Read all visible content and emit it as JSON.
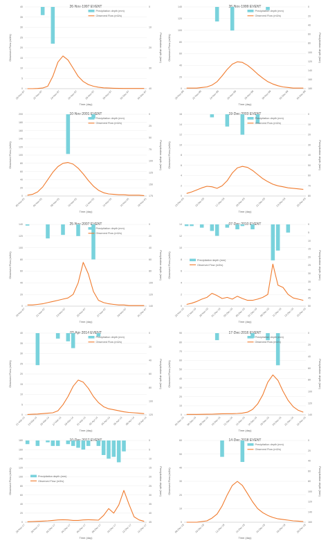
{
  "colors": {
    "precip": "#79d2dc",
    "flow": "#f07a2c",
    "axis": "#bdbdbd",
    "grid": "#ededed"
  },
  "chart_data": [
    {
      "type": "bar+line",
      "title": "26-Nov-1997 EVENT",
      "xlabel": "Time (day)",
      "ylabel_left": "Observed Flow (m3/s)",
      "ylabel_right": "Precipitation depth (mm)",
      "legend_position": "top-right",
      "series": [
        {
          "name": "Precipitation depth (mm)",
          "kind": "bar",
          "axis": "right",
          "values": [
            0,
            0,
            0,
            4,
            0,
            18,
            0,
            0,
            0,
            0,
            0,
            0,
            0,
            0,
            0,
            0,
            0,
            0,
            0,
            0,
            0,
            0,
            0,
            0
          ]
        },
        {
          "name": "Observed Flow (m3/s)",
          "kind": "line",
          "axis": "left",
          "values": [
            0,
            0,
            0.1,
            0.3,
            1.2,
            6,
            13,
            16,
            14,
            10,
            6,
            3.5,
            2,
            1.2,
            0.7,
            0.4,
            0.3,
            0.2,
            0.15,
            0.1,
            0.1,
            0.1,
            0.1,
            0.1
          ]
        }
      ],
      "ylim_left": [
        0,
        40
      ],
      "ylim_right_reversed": [
        0,
        40
      ],
      "left_ticks": [
        "40",
        "35",
        "30",
        "25",
        "20",
        "15",
        "10",
        "5",
        "0"
      ],
      "right_ticks": [
        "0",
        "10",
        "20",
        "30",
        "40"
      ],
      "x_tick_labels": [
        "20-Nov-97",
        "22-Nov-97",
        "24-Nov-97",
        "26-Nov-97",
        "28-Nov-97",
        "30-Nov-97",
        "02-Dec-97",
        "04-Dec-97"
      ]
    },
    {
      "type": "bar+line",
      "title": "26-Nov-1999 EVENT",
      "xlabel": "Time (day)",
      "ylabel_left": "Observed Flow (m3/s)",
      "ylabel_right": "Precipitation depth (mm)",
      "legend_position": "top-right",
      "series": [
        {
          "name": "Precipitation depth (mm)",
          "kind": "bar",
          "axis": "right",
          "values": [
            0,
            0,
            0,
            0,
            0,
            0,
            32,
            0,
            0,
            52,
            0,
            0,
            0,
            0,
            0,
            0,
            7,
            0,
            0,
            0,
            0,
            0,
            0,
            0
          ]
        },
        {
          "name": "Observed Flow (m3/s)",
          "kind": "line",
          "axis": "left",
          "values": [
            1,
            1,
            1,
            2,
            3,
            6,
            12,
            22,
            33,
            42,
            46,
            45,
            40,
            33,
            25,
            18,
            12,
            8,
            5,
            3,
            2,
            1,
            1,
            1
          ]
        }
      ],
      "ylim_left": [
        0,
        140
      ],
      "ylim_right_reversed": [
        0,
        180
      ],
      "left_ticks": [
        "140",
        "120",
        "100",
        "80",
        "60",
        "40",
        "20",
        "0"
      ],
      "right_ticks": [
        "0",
        "20",
        "40",
        "60",
        "80",
        "100",
        "120",
        "140",
        "160",
        "180"
      ],
      "x_tick_labels": [
        "20-Nov-99",
        "22-Nov-99",
        "24-Nov-99",
        "26-Nov-99",
        "28-Nov-99",
        "30-Nov-99",
        "02-Dec-99",
        "04-Dec-99"
      ]
    },
    {
      "type": "bar+line",
      "title": "10-Nov-2001 EVENT",
      "xlabel": "Time (day)",
      "ylabel_left": "Observed Flow (m3/s)",
      "ylabel_right": "Precipitation depth (mm)",
      "legend_position": "top-right",
      "series": [
        {
          "name": "Precipitation depth (mm)",
          "kind": "bar",
          "axis": "right",
          "values": [
            0,
            0,
            0,
            0,
            0,
            0,
            0,
            0,
            85,
            0,
            0,
            0,
            0,
            9,
            0,
            0,
            0,
            0,
            0,
            0,
            0,
            0,
            0,
            0
          ]
        },
        {
          "name": "Observed Flow (m3/s)",
          "kind": "line",
          "axis": "left",
          "values": [
            2,
            4,
            10,
            22,
            40,
            58,
            72,
            80,
            82,
            78,
            68,
            54,
            38,
            24,
            14,
            8,
            5,
            4,
            3,
            3,
            2,
            2,
            2,
            1
          ]
        }
      ],
      "ylim_left": [
        0,
        200
      ],
      "ylim_right_reversed": [
        0,
        175
      ],
      "left_ticks": [
        "200",
        "180",
        "160",
        "140",
        "120",
        "100",
        "80",
        "60",
        "40",
        "20",
        "0"
      ],
      "right_ticks": [
        "0",
        "25",
        "50",
        "75",
        "100",
        "125",
        "150",
        "175"
      ],
      "x_tick_labels": [
        "05-Nov-01",
        "06-Nov-01",
        "08-Nov-01",
        "10-Nov-01",
        "12-Nov-01",
        "14-Nov-01",
        "16-Nov-01",
        "18-Nov-01"
      ]
    },
    {
      "type": "bar+line",
      "title": "19-Dec-2003 EVENT",
      "xlabel": "Time (day)",
      "ylabel_left": "Observed Flow (m3/s)",
      "ylabel_right": "Precipitation depth (mm)",
      "legend_position": "top-right",
      "series": [
        {
          "name": "Precipitation depth (mm)",
          "kind": "bar",
          "axis": "right",
          "values": [
            0,
            0,
            0,
            0,
            0,
            3,
            0,
            0,
            12,
            0,
            0,
            20,
            0,
            0,
            9,
            0,
            0,
            0,
            0,
            0,
            0,
            0,
            0,
            0
          ]
        },
        {
          "name": "Observed Flow (m3/s)",
          "kind": "line",
          "axis": "left",
          "values": [
            0.5,
            0.8,
            1.2,
            1.6,
            1.9,
            1.8,
            1.5,
            2,
            3,
            4.5,
            5.5,
            5.8,
            5.6,
            5,
            4.2,
            3.4,
            2.8,
            2.3,
            2,
            1.8,
            1.6,
            1.5,
            1.4,
            1.3
          ]
        }
      ],
      "ylim_left": [
        0,
        16
      ],
      "ylim_right_reversed": [
        0,
        80
      ],
      "left_ticks": [
        "16",
        "14",
        "12",
        "10",
        "8",
        "6",
        "4",
        "2",
        "0"
      ],
      "right_ticks": [
        "0",
        "10",
        "20",
        "30",
        "40",
        "50",
        "60",
        "70",
        "80"
      ],
      "x_tick_labels": [
        "13-Dec-03",
        "15-Dec-03",
        "17-Dec-03",
        "19-Dec-03",
        "21-Dec-03",
        "23-Dec-03",
        "25-Dec-03"
      ]
    },
    {
      "type": "bar+line",
      "title": "25-Nov-2007 EVENT",
      "xlabel": "Time (day)",
      "ylabel_left": "Observed Flow (m3/s)",
      "ylabel_right": "Precipitation depth (mm)",
      "legend_position": "top-right",
      "series": [
        {
          "name": "Precipitation depth (mm)",
          "kind": "bar",
          "axis": "right",
          "values": [
            2,
            0,
            0,
            0,
            24,
            0,
            0,
            18,
            0,
            0,
            20,
            0,
            0,
            60,
            0,
            0,
            0,
            0,
            0,
            0,
            0,
            0,
            0,
            0
          ]
        },
        {
          "name": "Observed Flow (m3/s)",
          "kind": "line",
          "axis": "left",
          "values": [
            2,
            2,
            3,
            4,
            6,
            8,
            10,
            12,
            14,
            20,
            40,
            75,
            55,
            25,
            10,
            6,
            4,
            3,
            2,
            2,
            1,
            1,
            1,
            1
          ]
        }
      ],
      "ylim_left": [
        0,
        140
      ],
      "ylim_right_reversed": [
        0,
        140
      ],
      "left_ticks": [
        "140",
        "120",
        "100",
        "80",
        "60",
        "40",
        "20",
        "0"
      ],
      "right_ticks": [
        "0",
        "20",
        "40",
        "60",
        "80",
        "100",
        "120",
        "140"
      ],
      "x_tick_labels": [
        "19-Nov-07",
        "21-Nov-07",
        "23-Nov-07",
        "25-Nov-07",
        "27-Nov-07",
        "29-Nov-07",
        "01-Dec-07"
      ]
    },
    {
      "type": "bar+line",
      "title": "07-Dec-2010 EVENT",
      "xlabel": "Time (day)",
      "ylabel_left": "Observed Flow (m3/s)",
      "ylabel_right": "Precipitation depth (mm)",
      "legend_position": "middle-left",
      "series": [
        {
          "name": "Precipitation depth (mm)",
          "kind": "bar",
          "axis": "right",
          "values": [
            1,
            1,
            0,
            2,
            0,
            4,
            7,
            0,
            2,
            0,
            3,
            1,
            0,
            3,
            0,
            0,
            0,
            22,
            16,
            0,
            5,
            0,
            0,
            0
          ]
        },
        {
          "name": "Observed Flow (m3/s)",
          "kind": "line",
          "axis": "left",
          "values": [
            0.3,
            0.5,
            0.8,
            1.2,
            1.5,
            2.2,
            1.8,
            1.3,
            1.5,
            1.2,
            1.7,
            1.3,
            1.0,
            1.0,
            1.2,
            1.5,
            2.0,
            7.2,
            3.6,
            3.2,
            2.0,
            1.4,
            1.2,
            1.0
          ]
        }
      ],
      "ylim_left": [
        0,
        14
      ],
      "ylim_right_reversed": [
        0,
        50
      ],
      "left_ticks": [
        "14",
        "12",
        "10",
        "8",
        "6",
        "4",
        "2",
        "0"
      ],
      "right_ticks": [
        "0",
        "5",
        "10",
        "15",
        "20",
        "25",
        "30",
        "35",
        "40",
        "45",
        "50"
      ],
      "x_tick_labels": [
        "25-Nov-10",
        "27-Nov-10",
        "29-Nov-10",
        "01-Dec-10",
        "03-Dec-10",
        "05-Dec-10",
        "07-Dec-10",
        "09-Dec-10",
        "11-Dec-10",
        "13-Dec-10",
        "15-Dec-10"
      ]
    },
    {
      "type": "bar+line",
      "title": "02-Apr-2014 EVENT",
      "xlabel": "Time (day)",
      "ylabel_left": "Observed Flow (m3/s)",
      "ylabel_right": "Precipitation depth (mm)",
      "legend_position": "top-right",
      "series": [
        {
          "name": "Precipitation depth (mm)",
          "kind": "bar",
          "axis": "right",
          "values": [
            0,
            0,
            47,
            0,
            0,
            0,
            8,
            0,
            12,
            22,
            0,
            0,
            0,
            0,
            5,
            0,
            0,
            0,
            0,
            0,
            0,
            0,
            0,
            0
          ]
        },
        {
          "name": "Observed Flow (m3/s)",
          "kind": "line",
          "axis": "left",
          "values": [
            0.2,
            0.3,
            0.4,
            0.6,
            0.8,
            1,
            2,
            5,
            9,
            14,
            17,
            16,
            13,
            9,
            6,
            4,
            3,
            2.5,
            2,
            1.5,
            1.2,
            1,
            0.8,
            0.6
          ]
        }
      ],
      "ylim_left": [
        0,
        40
      ],
      "ylim_right_reversed": [
        0,
        120
      ],
      "left_ticks": [
        "40",
        "35",
        "30",
        "25",
        "20",
        "15",
        "10",
        "5",
        "0"
      ],
      "right_ticks": [
        "0",
        "20",
        "40",
        "60",
        "80",
        "100",
        "120"
      ],
      "x_tick_labels": [
        "21-Mar-14",
        "23-Mar-14",
        "25-Mar-14",
        "27-Mar-14",
        "29-Mar-14",
        "31-Mar-14",
        "02-Apr-14",
        "04-Apr-14",
        "06-Apr-14",
        "08-Apr-14",
        "10-Apr-14"
      ]
    },
    {
      "type": "bar+line",
      "title": "17-Dec-2016 EVENT",
      "xlabel": "Time (day)",
      "ylabel_left": "Observed Flow (m3/s)",
      "ylabel_right": "Precipitation depth (mm)",
      "legend_position": "top-right",
      "series": [
        {
          "name": "Precipitation depth (mm)",
          "kind": "bar",
          "axis": "right",
          "values": [
            0,
            0,
            0,
            0,
            0,
            0,
            12,
            0,
            0,
            0,
            0,
            0,
            0,
            8,
            0,
            0,
            12,
            0,
            55,
            0,
            0,
            0,
            0,
            0
          ]
        },
        {
          "name": "Observed Flow (m3/s)",
          "kind": "line",
          "axis": "left",
          "values": [
            0.5,
            0.5,
            0.5,
            0.6,
            0.7,
            0.8,
            1,
            1.2,
            1.3,
            1.3,
            1.5,
            2,
            3,
            6,
            12,
            22,
            36,
            44,
            38,
            26,
            16,
            9,
            5,
            3
          ]
        }
      ],
      "ylim_left": [
        0,
        90
      ],
      "ylim_right_reversed": [
        0,
        140
      ],
      "left_ticks": [
        "90",
        "80",
        "70",
        "60",
        "50",
        "40",
        "30",
        "20",
        "10",
        "0"
      ],
      "right_ticks": [
        "0",
        "20",
        "40",
        "60",
        "80",
        "100",
        "120",
        "140"
      ],
      "x_tick_labels": [
        "04-Dec-16",
        "06-Dec-16",
        "08-Dec-16",
        "10-Dec-16",
        "12-Dec-16",
        "14-Dec-16",
        "16-Dec-16",
        "18-Dec-16",
        "20-Dec-16",
        "22-Dec-16",
        "24-Dec-16"
      ]
    },
    {
      "type": "bar+line",
      "title": "10-Dec-2017 EVENT",
      "xlabel": "Time (day)",
      "ylabel_left": "Observed Flow (m3/s)",
      "ylabel_right": "Precipitation depth (mm)",
      "legend_position": "middle-left",
      "series": [
        {
          "name": "Precipitation depth (mm)",
          "kind": "bar",
          "axis": "right",
          "values": [
            2,
            0,
            3,
            0,
            1,
            3,
            3,
            0,
            2,
            3,
            4,
            5,
            3,
            0,
            3,
            8,
            10,
            9,
            12,
            6,
            0,
            0,
            0,
            0
          ]
        },
        {
          "name": "Observed Flow (m3/s)",
          "kind": "line",
          "axis": "left",
          "values": [
            1,
            1.5,
            2,
            2.5,
            3,
            4,
            5,
            5.5,
            5,
            4,
            4,
            5,
            5.5,
            5,
            4.5,
            15,
            30,
            20,
            38,
            70,
            40,
            12,
            5,
            2
          ]
        }
      ],
      "ylim_left": [
        0,
        180
      ],
      "ylim_right_reversed": [
        0,
        45
      ],
      "left_ticks": [
        "180",
        "160",
        "140",
        "120",
        "100",
        "80",
        "60",
        "40",
        "20",
        "0"
      ],
      "right_ticks": [
        "0",
        "5",
        "10",
        "15",
        "20",
        "25",
        "30",
        "35",
        "40",
        "45"
      ],
      "x_tick_labels": [
        "28-Nov-17",
        "30-Nov-17",
        "02-Dec-17",
        "04-Dec-17",
        "06-Dec-17",
        "08-Dec-17",
        "10-Dec-17",
        "12-Dec-17",
        "14-Dec-17"
      ]
    },
    {
      "type": "bar+line",
      "title": "14-Dec-2018 EVENT",
      "xlabel": "Time (day)",
      "ylabel_left": "Observed Flow (m3/s)",
      "ylabel_right": "Precipitation depth (mm)",
      "legend_position": "top-right",
      "series": [
        {
          "name": "Precipitation depth (mm)",
          "kind": "bar",
          "axis": "right",
          "values": [
            0,
            0,
            0,
            0,
            0,
            0,
            0,
            32,
            0,
            0,
            0,
            42,
            0,
            0,
            0,
            0,
            0,
            0,
            0,
            0,
            0,
            0,
            0,
            0
          ]
        },
        {
          "name": "Observed Flow (m3/s)",
          "kind": "line",
          "axis": "left",
          "values": [
            0,
            0,
            0,
            0.5,
            1,
            3,
            6,
            12,
            20,
            27,
            30,
            27,
            21,
            15,
            10,
            7,
            5,
            3.5,
            2.5,
            2,
            1.5,
            1,
            0.8,
            0.5
          ]
        }
      ],
      "ylim_left": [
        0,
        60
      ],
      "ylim_right_reversed": [
        0,
        160
      ],
      "left_ticks": [
        "60",
        "50",
        "40",
        "30",
        "20",
        "10",
        "0"
      ],
      "right_ticks": [
        "0",
        "20",
        "40",
        "60",
        "80",
        "100",
        "120",
        "140",
        "160"
      ],
      "x_tick_labels": [
        "08-Dec-18",
        "10-Dec-18",
        "12-Dec-18",
        "14-Dec-18",
        "16-Dec-18",
        "18-Dec-18",
        "20-Dec-18"
      ]
    }
  ]
}
